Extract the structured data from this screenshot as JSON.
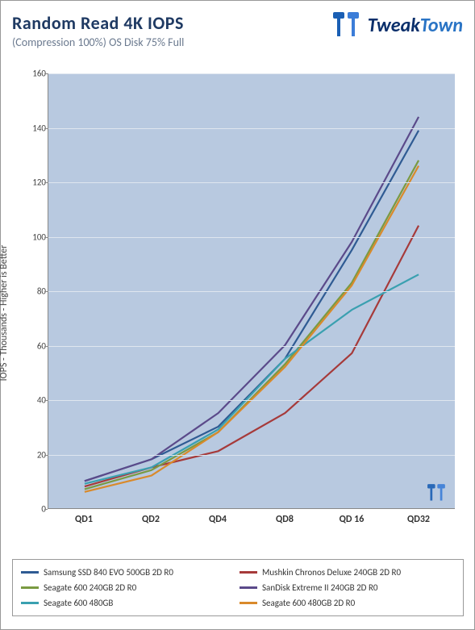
{
  "header": {
    "title": "Random Read 4K IOPS",
    "subtitle_paren": "(Compression 100%)",
    "subtitle_rest": " OS Disk 75% Full",
    "logo_tweak": "Tweak",
    "logo_town": "Town",
    "logo_colors": {
      "bar1": "#1a5fb4",
      "bar2": "#3b7dd8",
      "text1": "#0a2f6b",
      "text2": "#2a74c5"
    }
  },
  "chart": {
    "type": "line",
    "ylabel": "IOPS - Thousands - Higher is Better",
    "background_color": "#b8c9e0",
    "grid_color": "#dfe6ef",
    "categories": [
      "QD1",
      "QD2",
      "QD4",
      "QD8",
      "QD 16",
      "QD32"
    ],
    "ylim": [
      0,
      160
    ],
    "ytick_step": 20,
    "line_width": 2.2,
    "series": [
      {
        "name": "Samsung SSD 840 EVO 500GB 2D R0",
        "color": "#2f5b93",
        "values": [
          10,
          18,
          30,
          55,
          95,
          139
        ]
      },
      {
        "name": "Mushkin Chronos Deluxe 240GB 2D R0",
        "color": "#a63a3a",
        "values": [
          8,
          15,
          21,
          35,
          57,
          104
        ]
      },
      {
        "name": "Seagate 600 240GB 2D R0",
        "color": "#7a9a42",
        "values": [
          7,
          14,
          28,
          53,
          83,
          128
        ]
      },
      {
        "name": "SanDisk Extreme II 240GB 2D R0",
        "color": "#5b4a8a",
        "values": [
          10,
          18,
          35,
          60,
          98,
          144
        ]
      },
      {
        "name": "Seagate 600 480GB",
        "color": "#3aa0b0",
        "values": [
          9,
          15,
          29,
          55,
          73,
          86
        ]
      },
      {
        "name": "Seagate 600 480GB 2D R0",
        "color": "#d98a2b",
        "values": [
          6,
          12,
          28,
          52,
          82,
          126
        ]
      }
    ]
  }
}
